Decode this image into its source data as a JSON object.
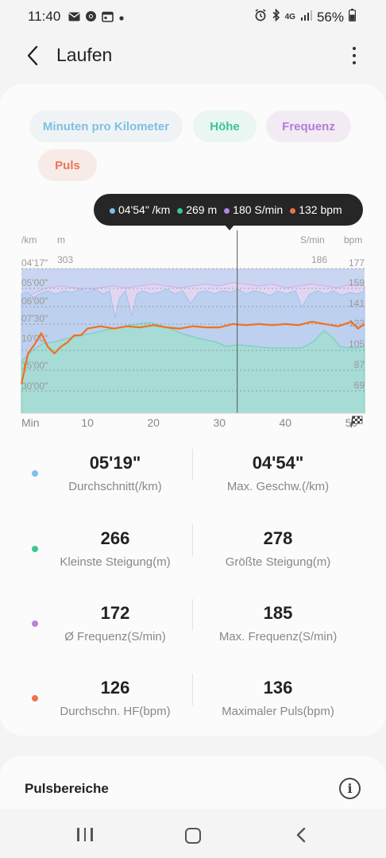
{
  "status_bar": {
    "time": "11:40",
    "network": "4G",
    "battery": "56%"
  },
  "app_bar": {
    "title": "Laufen"
  },
  "chips": {
    "pace": "Minuten pro Kilometer",
    "altitude": "Höhe",
    "cadence": "Frequenz",
    "heart_rate": "Puls"
  },
  "tooltip": {
    "pace": "04'54\" /km",
    "altitude": "269 m",
    "cadence": "180 S/min",
    "heart_rate": "132 bpm"
  },
  "colors": {
    "pace": "#7cc0ea",
    "altitude": "#39c98d",
    "cadence": "#b584df",
    "heart_rate": "#f07050"
  },
  "chart_data": {
    "type": "area",
    "axis_units": {
      "pace": "/km",
      "altitude": "m",
      "cadence": "S/min",
      "heart_rate": "bpm"
    },
    "pace_ticks": [
      "04'17\"",
      "05'00\"",
      "06'00\"",
      "07'30\"",
      "10'00\"",
      "15'00\"",
      "30'00\""
    ],
    "altitude_ticks": [
      "303"
    ],
    "cadence_ticks": [
      "186"
    ],
    "hr_ticks": [
      "177",
      "159",
      "141",
      "123",
      "105",
      "87",
      "69"
    ],
    "x_label": "Min",
    "x_ticks": [
      "10",
      "20",
      "30",
      "40",
      "50"
    ],
    "x_max_min": 52,
    "cursor_minute": 32.7,
    "series": [
      {
        "name": "heart_rate",
        "x": [
          0,
          1,
          2,
          3,
          4,
          5,
          6,
          7,
          8,
          9,
          10,
          12,
          14,
          16,
          18,
          20,
          22,
          24,
          26,
          28,
          30,
          32,
          34,
          36,
          38,
          40,
          42,
          44,
          46,
          48,
          50,
          51,
          52
        ],
        "values": [
          75,
          102,
          110,
          120,
          108,
          102,
          108,
          112,
          118,
          118,
          124,
          126,
          124,
          126,
          125,
          127,
          125,
          124,
          126,
          125,
          125,
          128,
          127,
          128,
          127,
          128,
          127,
          130,
          128,
          126,
          130,
          124,
          128
        ]
      },
      {
        "name": "cadence",
        "x": [
          0,
          2,
          4,
          6,
          8,
          10,
          12,
          14,
          16,
          18,
          20,
          22,
          24,
          26,
          28,
          30,
          32,
          34,
          36,
          38,
          40,
          42,
          44,
          46,
          48,
          50,
          52
        ],
        "values": [
          168,
          172,
          175,
          176,
          175,
          174,
          175,
          176,
          175,
          176,
          177,
          176,
          175,
          176,
          177,
          176,
          178,
          177,
          176,
          177,
          175,
          176,
          177,
          176,
          175,
          177,
          176
        ]
      }
    ]
  },
  "stats": [
    {
      "left": {
        "value": "05'19\"",
        "label": "Durchschnitt(/km)"
      },
      "right": {
        "value": "04'54\"",
        "label": "Max. Geschw.(/km)"
      }
    },
    {
      "left": {
        "value": "266",
        "label": "Kleinste Steigung(m)"
      },
      "right": {
        "value": "278",
        "label": "Größte Steigung(m)"
      }
    },
    {
      "left": {
        "value": "172",
        "label": "Ø Frequenz(S/min)"
      },
      "right": {
        "value": "185",
        "label": "Max. Frequenz(S/min)"
      }
    },
    {
      "left": {
        "value": "126",
        "label": "Durchschn. HF(bpm)"
      },
      "right": {
        "value": "136",
        "label": "Maximaler Puls(bpm)"
      }
    }
  ],
  "pulse_zones": {
    "title": "Pulsbereiche"
  },
  "icons": {
    "back": "back-arrow-icon",
    "menu": "more-vertical-icon",
    "info": "info-icon",
    "finish": "checkered-flag-icon"
  }
}
